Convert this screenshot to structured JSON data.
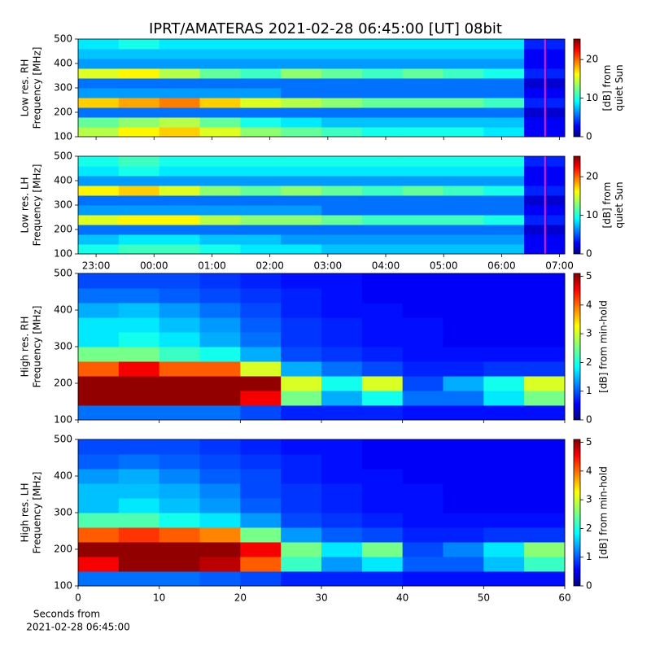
{
  "figure_title": "IPRT/AMATERAS 2021-02-28 06:45:00 [UT]   08bit",
  "chart_data": [
    {
      "type": "heatmap",
      "ylabel": [
        "Low res. RH",
        "Frequency [MHz]"
      ],
      "colorbar_label": [
        "[dB] from",
        "quiet Sun"
      ],
      "xlim": [
        22.69,
        31.09
      ],
      "xticks": [
        {
          "value": 23,
          "label": "23:00"
        },
        {
          "value": 24,
          "label": "00:00"
        },
        {
          "value": 25,
          "label": "01:00"
        },
        {
          "value": 26,
          "label": "02:00"
        },
        {
          "value": 27,
          "label": "03:00"
        },
        {
          "value": 28,
          "label": "04:00"
        },
        {
          "value": 29,
          "label": "05:00"
        },
        {
          "value": 30,
          "label": "06:00"
        },
        {
          "value": 31,
          "label": "07:00"
        }
      ],
      "ylim": [
        100,
        500
      ],
      "yticks": [
        100,
        200,
        300,
        400,
        500
      ],
      "clim": [
        0,
        25.3
      ],
      "cticks": [
        0,
        10,
        20
      ],
      "marker_x": 30.75,
      "marker_color": "#e020e0",
      "x_bins": [
        22.69,
        23.39,
        24.09,
        24.79,
        25.49,
        26.19,
        26.89,
        27.59,
        28.29,
        28.99,
        29.69,
        30.39,
        31.09
      ],
      "y_bins": [
        100,
        140,
        180,
        220,
        260,
        300,
        340,
        380,
        420,
        460,
        500
      ],
      "values": [
        [
          14,
          16,
          17,
          15,
          13,
          12,
          11,
          10,
          10,
          10,
          9,
          3
        ],
        [
          12,
          13,
          14,
          12,
          10,
          9,
          8,
          8,
          8,
          8,
          8,
          3
        ],
        [
          6,
          6,
          6,
          6,
          6,
          6,
          6,
          6,
          6,
          6,
          6,
          2
        ],
        [
          17,
          18,
          19,
          17,
          15,
          14,
          13,
          12,
          12,
          12,
          11,
          4
        ],
        [
          7,
          7,
          7,
          7,
          7,
          6,
          6,
          6,
          6,
          6,
          6,
          3
        ],
        [
          6,
          6,
          6,
          6,
          6,
          6,
          6,
          6,
          6,
          6,
          6,
          2
        ],
        [
          15,
          16,
          14,
          12,
          11,
          13,
          12,
          11,
          12,
          11,
          10,
          4
        ],
        [
          7,
          7,
          7,
          7,
          7,
          7,
          7,
          7,
          7,
          7,
          7,
          3
        ],
        [
          8,
          8,
          8,
          8,
          8,
          8,
          8,
          8,
          8,
          8,
          8,
          3
        ],
        [
          9,
          10,
          9,
          9,
          9,
          9,
          9,
          9,
          9,
          9,
          9,
          4
        ]
      ]
    },
    {
      "type": "heatmap",
      "ylabel": [
        "Low res. LH",
        "Frequency [MHz]"
      ],
      "colorbar_label": [
        "[dB] from",
        "quiet Sun"
      ],
      "xlim": [
        22.69,
        31.09
      ],
      "xticks": [
        {
          "value": 23,
          "label": "23:00"
        },
        {
          "value": 24,
          "label": "00:00"
        },
        {
          "value": 25,
          "label": "01:00"
        },
        {
          "value": 26,
          "label": "02:00"
        },
        {
          "value": 27,
          "label": "03:00"
        },
        {
          "value": 28,
          "label": "04:00"
        },
        {
          "value": 29,
          "label": "05:00"
        },
        {
          "value": 30,
          "label": "06:00"
        },
        {
          "value": 31,
          "label": "07:00"
        }
      ],
      "ylim": [
        100,
        500
      ],
      "yticks": [
        100,
        200,
        300,
        400,
        500
      ],
      "clim": [
        0,
        25.3
      ],
      "cticks": [
        0,
        10,
        20
      ],
      "marker_x": 30.75,
      "marker_color": "#e020e0",
      "x_bins": [
        22.69,
        23.39,
        24.09,
        24.79,
        25.49,
        26.19,
        26.89,
        27.59,
        28.29,
        28.99,
        29.69,
        30.39,
        31.09
      ],
      "y_bins": [
        100,
        140,
        180,
        220,
        260,
        300,
        340,
        380,
        420,
        460,
        500
      ],
      "values": [
        [
          10,
          11,
          11,
          10,
          9,
          9,
          8,
          8,
          8,
          8,
          8,
          3
        ],
        [
          8,
          9,
          9,
          8,
          8,
          7,
          7,
          7,
          7,
          7,
          7,
          3
        ],
        [
          6,
          6,
          6,
          6,
          6,
          6,
          6,
          6,
          6,
          6,
          6,
          2
        ],
        [
          15,
          16,
          16,
          14,
          13,
          13,
          12,
          11,
          11,
          11,
          10,
          4
        ],
        [
          7,
          7,
          7,
          7,
          7,
          7,
          6,
          6,
          6,
          6,
          6,
          3
        ],
        [
          6,
          6,
          6,
          6,
          6,
          6,
          6,
          6,
          6,
          6,
          6,
          2
        ],
        [
          16,
          17,
          15,
          13,
          12,
          13,
          12,
          11,
          12,
          11,
          10,
          4
        ],
        [
          7,
          7,
          7,
          7,
          7,
          7,
          7,
          7,
          7,
          7,
          7,
          3
        ],
        [
          9,
          10,
          9,
          9,
          9,
          9,
          9,
          9,
          9,
          9,
          9,
          3
        ],
        [
          10,
          11,
          10,
          10,
          10,
          10,
          10,
          10,
          10,
          10,
          10,
          4
        ]
      ]
    },
    {
      "type": "heatmap",
      "ylabel": [
        "High res. RH",
        "Frequency [MHz]"
      ],
      "colorbar_label": [
        "[dB] from min-hold"
      ],
      "xlim": [
        0,
        60
      ],
      "xticks": [
        0,
        10,
        20,
        30,
        40,
        50,
        60
      ],
      "ylim": [
        100,
        500
      ],
      "yticks": [
        100,
        200,
        300,
        400,
        500
      ],
      "clim": [
        0,
        5.1
      ],
      "cticks": [
        0,
        1,
        2,
        3,
        4,
        5
      ],
      "x_bins": [
        0,
        5,
        10,
        15,
        20,
        25,
        30,
        35,
        40,
        45,
        50,
        55,
        60
      ],
      "y_bins": [
        100,
        140,
        180,
        220,
        260,
        300,
        340,
        380,
        420,
        460,
        500
      ],
      "values": [
        [
          1.2,
          1.2,
          1.2,
          1.2,
          1.0,
          0.8,
          0.8,
          0.8,
          0.7,
          0.7,
          0.7,
          0.7
        ],
        [
          5,
          5,
          5,
          5,
          4.5,
          2.5,
          1.5,
          2,
          1.2,
          1.2,
          1.8,
          2.5
        ],
        [
          5,
          5,
          5,
          5,
          5,
          3,
          2,
          3,
          1,
          1.5,
          2,
          3
        ],
        [
          4,
          4.5,
          4,
          4,
          3,
          1.5,
          1.2,
          1,
          0.8,
          0.8,
          0.9,
          0.9
        ],
        [
          2.5,
          2.5,
          2.2,
          2,
          1.5,
          1,
          0.9,
          0.8,
          0.7,
          0.7,
          0.7,
          0.7
        ],
        [
          1.8,
          2,
          1.8,
          1.5,
          1.2,
          0.9,
          0.8,
          0.7,
          0.7,
          0.6,
          0.6,
          0.6
        ],
        [
          1.8,
          1.8,
          1.6,
          1.4,
          1.1,
          0.9,
          0.8,
          0.7,
          0.7,
          0.6,
          0.6,
          0.6
        ],
        [
          1.5,
          1.6,
          1.4,
          1.2,
          1,
          0.8,
          0.7,
          0.7,
          0.6,
          0.6,
          0.6,
          0.6
        ],
        [
          1.2,
          1.2,
          1.1,
          1,
          0.9,
          0.8,
          0.7,
          0.6,
          0.6,
          0.6,
          0.6,
          0.6
        ],
        [
          1,
          1,
          1,
          0.9,
          0.8,
          0.7,
          0.7,
          0.6,
          0.6,
          0.6,
          0.6,
          0.6
        ]
      ]
    },
    {
      "type": "heatmap",
      "ylabel": [
        "High res. LH",
        "Frequency [MHz]"
      ],
      "colorbar_label": [
        "[dB] from min-hold"
      ],
      "xlabel": [
        "Seconds from",
        "2021-02-28 06:45:00"
      ],
      "xlim": [
        0,
        60
      ],
      "xticks": [
        0,
        10,
        20,
        30,
        40,
        50,
        60
      ],
      "ylim": [
        100,
        500
      ],
      "yticks": [
        100,
        200,
        300,
        400,
        500
      ],
      "clim": [
        0,
        5.1
      ],
      "cticks": [
        0,
        1,
        2,
        3,
        4,
        5
      ],
      "x_bins": [
        0,
        5,
        10,
        15,
        20,
        25,
        30,
        35,
        40,
        45,
        50,
        55,
        60
      ],
      "y_bins": [
        100,
        140,
        180,
        220,
        260,
        300,
        340,
        380,
        420,
        460,
        500
      ],
      "values": [
        [
          1.2,
          1.2,
          1.2,
          1.1,
          1.0,
          0.8,
          0.8,
          0.8,
          0.7,
          0.7,
          0.7,
          0.7
        ],
        [
          4.5,
          5,
          5,
          4.8,
          4,
          2.2,
          1.4,
          1.8,
          1.1,
          1.1,
          1.6,
          2.2
        ],
        [
          5,
          5,
          5,
          5,
          4.5,
          2.5,
          1.8,
          2.5,
          1,
          1.3,
          1.8,
          2.6
        ],
        [
          4,
          4.2,
          4,
          3.8,
          2.5,
          1.4,
          1.1,
          1,
          0.8,
          0.8,
          0.9,
          0.9
        ],
        [
          2.3,
          2.3,
          2,
          1.8,
          1.4,
          1,
          0.9,
          0.8,
          0.7,
          0.7,
          0.7,
          0.7
        ],
        [
          1.6,
          1.8,
          1.6,
          1.4,
          1.1,
          0.9,
          0.8,
          0.7,
          0.7,
          0.6,
          0.6,
          0.6
        ],
        [
          1.6,
          1.6,
          1.5,
          1.3,
          1,
          0.9,
          0.8,
          0.7,
          0.7,
          0.6,
          0.6,
          0.6
        ],
        [
          1.4,
          1.5,
          1.3,
          1.1,
          1,
          0.8,
          0.7,
          0.7,
          0.6,
          0.6,
          0.6,
          0.6
        ],
        [
          1.1,
          1.2,
          1.1,
          1,
          0.9,
          0.8,
          0.7,
          0.6,
          0.6,
          0.6,
          0.6,
          0.6
        ],
        [
          1,
          1,
          1,
          0.9,
          0.8,
          0.7,
          0.7,
          0.6,
          0.6,
          0.6,
          0.6,
          0.6
        ]
      ]
    }
  ]
}
